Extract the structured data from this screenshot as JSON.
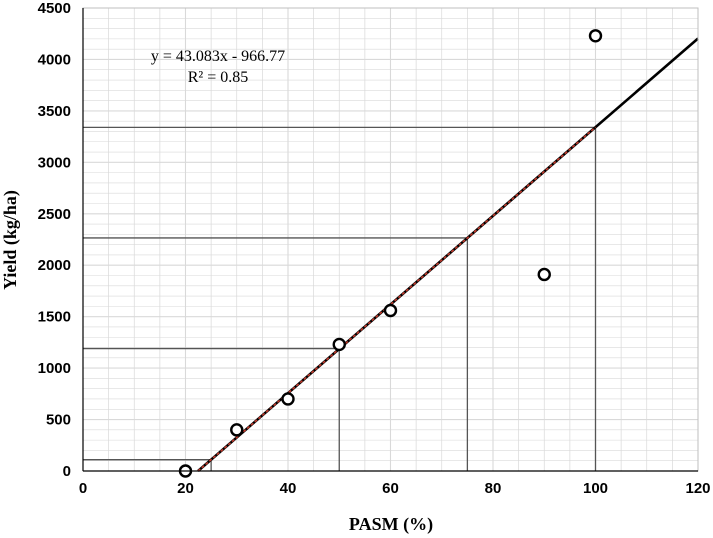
{
  "chart_data": {
    "type": "scatter",
    "xlabel": "PASM (%)",
    "ylabel": "Yield (kg/ha)",
    "xlim": [
      0,
      120
    ],
    "ylim": [
      0,
      4500
    ],
    "x_ticks": [
      "0",
      "20",
      "40",
      "60",
      "80",
      "100",
      "120"
    ],
    "y_ticks": [
      "0",
      "500",
      "1000",
      "1500",
      "2000",
      "2500",
      "3000",
      "3500",
      "4000",
      "4500"
    ],
    "grid": true,
    "points": [
      {
        "x": 20,
        "y": 0
      },
      {
        "x": 30,
        "y": 400
      },
      {
        "x": 40,
        "y": 700
      },
      {
        "x": 50,
        "y": 1230
      },
      {
        "x": 60,
        "y": 1560
      },
      {
        "x": 90,
        "y": 1910
      },
      {
        "x": 100,
        "y": 4230
      }
    ],
    "trendline": {
      "slope": 43.083,
      "intercept": -966.77,
      "x_range": [
        22.44,
        120
      ]
    },
    "fitted_segment": {
      "x_range": [
        22.44,
        100
      ]
    },
    "reference_lines": [
      {
        "x": 25,
        "y": 110
      },
      {
        "x": 50,
        "y": 1190
      },
      {
        "x": 75,
        "y": 2265
      },
      {
        "x": 100,
        "y": 3340
      }
    ],
    "equation_text": "y = 43.083x - 966.77",
    "r2_text": "R² = 0.85",
    "colors": {
      "trendline": "#000000",
      "fitted": "#c0392b",
      "reference": "#555555",
      "grid": "#d9d9d9",
      "marker": "#000000"
    }
  }
}
